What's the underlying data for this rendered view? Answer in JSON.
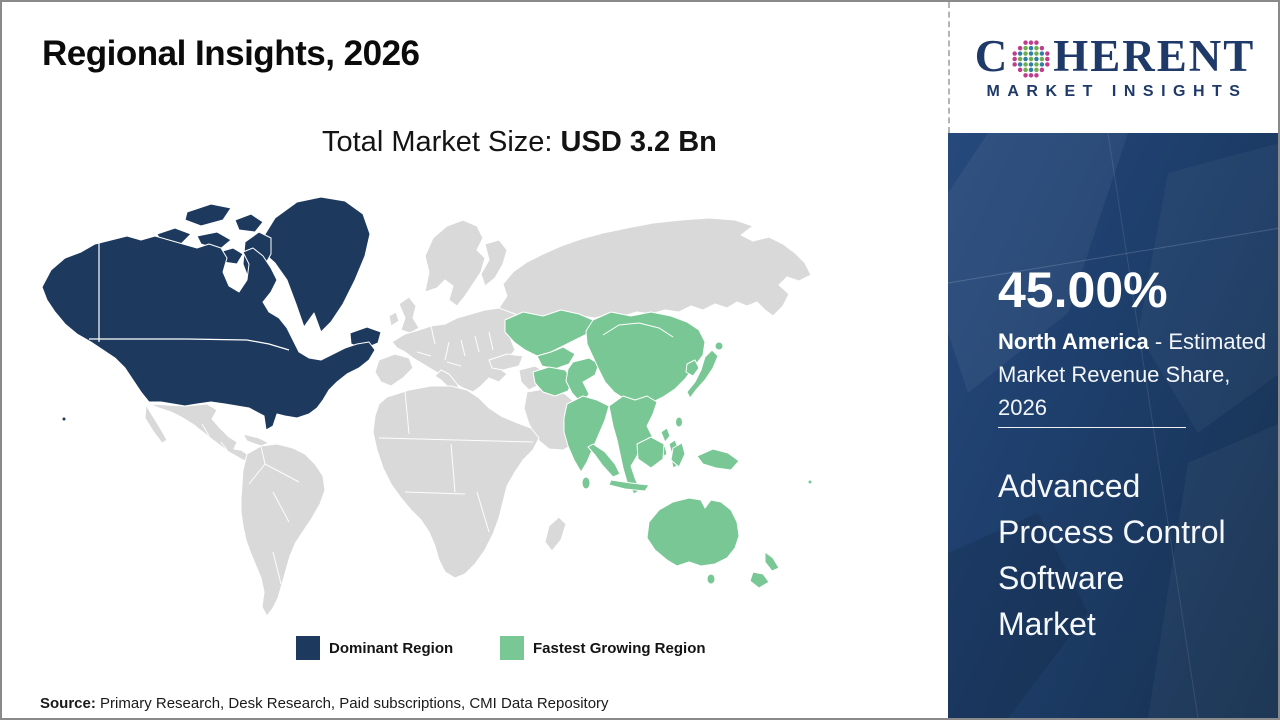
{
  "header": {
    "title": "Regional Insights, 2026"
  },
  "market_size": {
    "label": "Total Market Size: ",
    "value": "USD 3.2 Bn"
  },
  "logo": {
    "prefix": "C",
    "suffix": "HERENT",
    "tagline": "MARKET INSIGHTS",
    "text_color": "#1f3a68",
    "dot_colors": {
      "outer": "#c03c8c",
      "green": "#6fae4e",
      "teal": "#2f7fa3"
    }
  },
  "map": {
    "colors": {
      "dominant": "#1d3a5e",
      "fastest": "#78c795",
      "other": "#d9d9d9",
      "border": "#ffffff",
      "ocean": "#ffffff"
    },
    "legend": [
      {
        "label": "Dominant Region",
        "color": "#1d3a5e"
      },
      {
        "label": "Fastest Growing Region",
        "color": "#78c795"
      }
    ]
  },
  "sidebar": {
    "background": "#1c3c66",
    "stat_value": "45.00%",
    "stat_line1_bold": "North America",
    "stat_line1_rest": " - Estimated",
    "stat_line2": "Market Revenue Share,",
    "stat_line3": "2026",
    "market_name_lines": [
      "Advanced",
      "Process Control",
      "Software",
      "Market"
    ]
  },
  "source": {
    "label": "Source:",
    "text": " Primary Research, Desk Research, Paid subscriptions, CMI Data Repository"
  },
  "chart_data": {
    "type": "heatmap",
    "subtype": "choropleth-world-map",
    "title": "Regional Insights, 2026",
    "total_market_size": "USD 3.2 Bn",
    "market": "Advanced Process Control Software Market",
    "year": 2026,
    "regions": [
      {
        "name": "North America",
        "classification": "Dominant Region",
        "color": "#1d3a5e",
        "value_pct": 45.0,
        "value_label": "45.00% - Estimated Market Revenue Share, 2026"
      },
      {
        "name": "Asia Pacific",
        "classification": "Fastest Growing Region",
        "color": "#78c795",
        "value_pct": null,
        "value_label": ""
      },
      {
        "name": "Rest of World",
        "classification": "Not highlighted",
        "color": "#d9d9d9",
        "value_pct": null,
        "value_label": ""
      }
    ],
    "legend_entries": [
      "Dominant Region",
      "Fastest Growing Region"
    ],
    "legend_position": "bottom-center",
    "source": "Primary Research, Desk Research, Paid subscriptions, CMI Data Repository"
  }
}
